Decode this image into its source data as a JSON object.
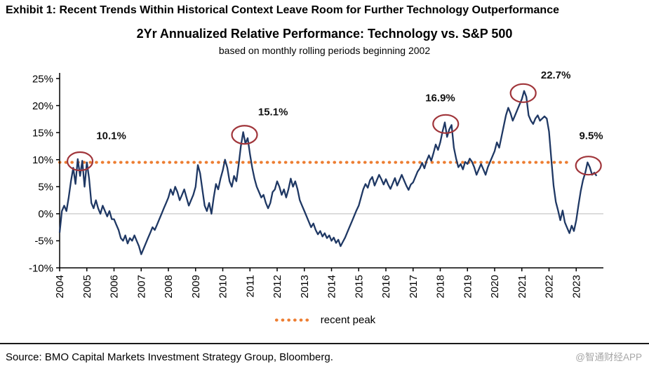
{
  "exhibit_title": "Exhibit 1: Recent Trends Within Historical Context Leave Room for Further Technology Outperformance",
  "source": "Source: BMO Capital Markets Investment Strategy Group, Bloomberg.",
  "watermark": "@智通财经APP",
  "chart_data": {
    "type": "line",
    "title": "2Yr Annualized Relative Performance: Technology vs. S&P 500",
    "subtitle": "based on monthly rolling periods beginning 2002",
    "xlabel": "",
    "ylabel": "",
    "x_range": [
      2004,
      2024
    ],
    "ylim": [
      -10,
      25
    ],
    "grid": "zero-line-only",
    "legend_position": "bottom-center",
    "y_ticks": [
      {
        "value": 25,
        "label": "25%"
      },
      {
        "value": 20,
        "label": "20%"
      },
      {
        "value": 15,
        "label": "15%"
      },
      {
        "value": 10,
        "label": "10%"
      },
      {
        "value": 5,
        "label": "5%"
      },
      {
        "value": 0,
        "label": "0%"
      },
      {
        "value": -5,
        "label": "-5%"
      },
      {
        "value": -10,
        "label": "-10%"
      }
    ],
    "x_ticks": [
      2004,
      2005,
      2006,
      2007,
      2008,
      2009,
      2010,
      2011,
      2012,
      2013,
      2014,
      2015,
      2016,
      2017,
      2018,
      2019,
      2020,
      2021,
      2022,
      2023
    ],
    "colors": {
      "line": "#1F3864",
      "peak_line": "#ED7D31",
      "annotation": "#A0353A",
      "zero_line": "#C9C9C9",
      "axis": "#000000"
    },
    "peak_line": {
      "value": 9.5,
      "x_start": 2004.0,
      "x_end": 2022.8
    },
    "legend": [
      {
        "label": "recent peak",
        "style": "dotted",
        "color": "#ED7D31"
      }
    ],
    "series": [
      {
        "name": "Technology vs. S&P 500 2yr annualized relative performance",
        "start_year": 2004,
        "frequency": "monthly",
        "values": [
          -3.5,
          0.5,
          1.5,
          0.5,
          3.0,
          6.0,
          8.5,
          5.5,
          10.1,
          7.0,
          9.8,
          5.0,
          9.5,
          6.5,
          2.0,
          1.0,
          2.5,
          1.0,
          0.0,
          1.5,
          0.5,
          -0.5,
          0.5,
          -1.0,
          -1.0,
          -2.0,
          -3.0,
          -4.5,
          -5.0,
          -4.0,
          -5.5,
          -4.5,
          -5.0,
          -4.0,
          -5.0,
          -6.0,
          -7.5,
          -6.5,
          -5.5,
          -4.5,
          -3.5,
          -2.5,
          -3.0,
          -2.0,
          -1.0,
          0.0,
          1.0,
          2.0,
          3.0,
          4.5,
          3.5,
          5.0,
          4.0,
          2.5,
          3.5,
          4.5,
          3.0,
          1.5,
          2.5,
          3.5,
          5.0,
          9.0,
          7.5,
          4.5,
          1.5,
          0.5,
          2.0,
          0.0,
          3.0,
          5.5,
          4.5,
          6.5,
          8.0,
          10.0,
          8.5,
          6.0,
          5.0,
          7.0,
          6.0,
          9.0,
          12.5,
          15.1,
          13.0,
          14.0,
          11.0,
          8.5,
          6.5,
          5.0,
          4.0,
          3.0,
          3.5,
          2.0,
          1.0,
          2.0,
          4.0,
          4.5,
          6.0,
          5.0,
          3.5,
          4.5,
          3.0,
          4.5,
          6.5,
          5.0,
          6.0,
          4.5,
          2.5,
          1.5,
          0.5,
          -0.5,
          -1.5,
          -2.5,
          -1.8,
          -3.0,
          -3.8,
          -3.2,
          -4.2,
          -3.6,
          -4.5,
          -4.0,
          -5.0,
          -4.4,
          -5.4,
          -4.8,
          -6.0,
          -5.2,
          -4.4,
          -3.4,
          -2.4,
          -1.4,
          -0.4,
          0.6,
          1.5,
          3.0,
          4.5,
          5.5,
          4.8,
          6.2,
          6.8,
          5.2,
          6.2,
          7.2,
          6.4,
          5.4,
          6.4,
          5.4,
          4.6,
          5.6,
          6.6,
          5.2,
          6.2,
          7.2,
          6.2,
          5.2,
          4.4,
          5.4,
          5.8,
          6.8,
          7.8,
          8.4,
          9.4,
          8.4,
          9.8,
          10.8,
          9.8,
          11.2,
          12.8,
          11.8,
          13.2,
          15.2,
          16.9,
          14.2,
          15.6,
          16.4,
          12.2,
          10.2,
          8.6,
          9.2,
          8.2,
          9.6,
          9.2,
          10.2,
          9.6,
          8.6,
          7.2,
          8.2,
          9.2,
          8.2,
          7.2,
          8.6,
          9.6,
          10.6,
          11.6,
          13.2,
          12.2,
          14.2,
          16.2,
          18.2,
          19.6,
          18.6,
          17.2,
          18.2,
          19.2,
          20.2,
          21.2,
          22.7,
          21.6,
          18.2,
          17.2,
          16.6,
          17.6,
          18.2,
          17.2,
          17.6,
          18.0,
          17.6,
          15.2,
          10.2,
          5.2,
          2.2,
          0.6,
          -1.2,
          0.6,
          -1.6,
          -2.6,
          -3.6,
          -2.2,
          -3.2,
          -1.2,
          1.6,
          4.2,
          6.2,
          7.6,
          9.5,
          8.6,
          7.2,
          7.6,
          7.0
        ]
      }
    ],
    "annotations": [
      {
        "label": "10.1%",
        "cx": 2004.75,
        "cy": 9.7,
        "lx": 2005.35,
        "ly": 13.8,
        "anchor": "start"
      },
      {
        "label": "15.1%",
        "cx": 2010.8,
        "cy": 14.6,
        "lx": 2011.3,
        "ly": 18.2,
        "anchor": "start"
      },
      {
        "label": "16.9%",
        "cx": 2018.2,
        "cy": 16.6,
        "lx": 2018.0,
        "ly": 20.8,
        "anchor": "middle"
      },
      {
        "label": "22.7%",
        "cx": 2021.05,
        "cy": 22.3,
        "lx": 2021.7,
        "ly": 25.0,
        "anchor": "start"
      },
      {
        "label": "9.5%",
        "cx": 2023.45,
        "cy": 8.9,
        "lx": 2023.55,
        "ly": 13.8,
        "anchor": "middle"
      }
    ]
  }
}
